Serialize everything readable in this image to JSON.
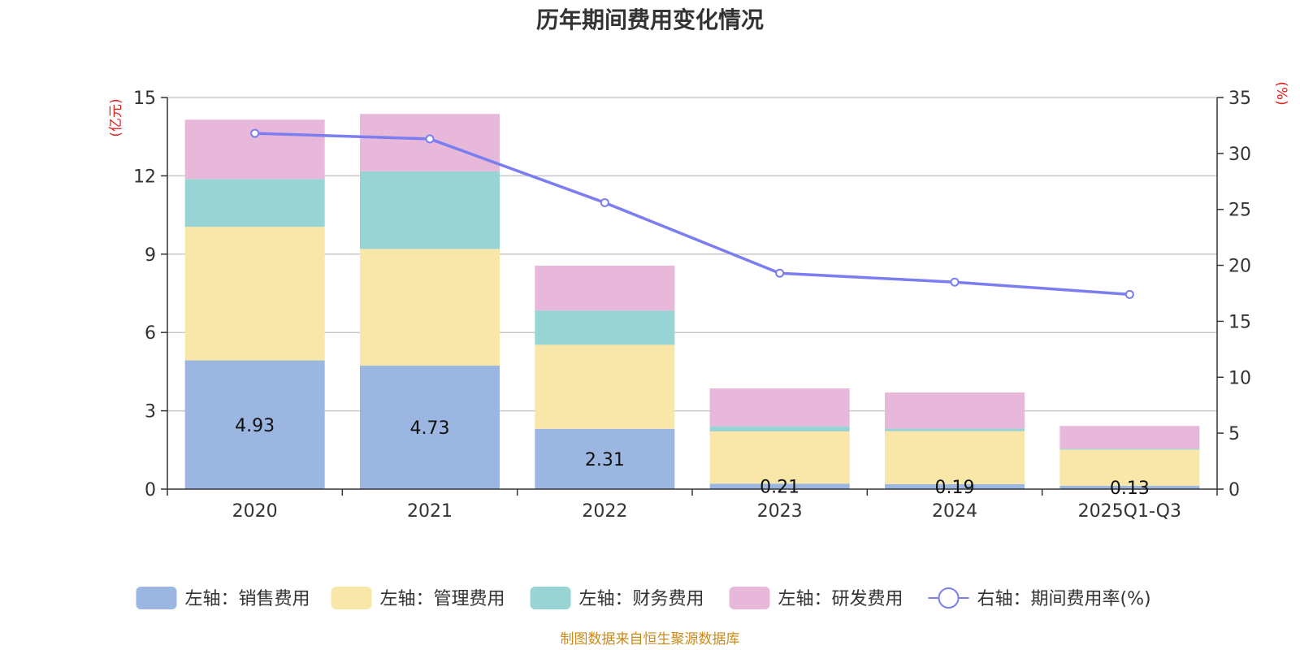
{
  "chart_data": {
    "type": "bar",
    "stacked": true,
    "title": "历年期间费用变化情况",
    "categories": [
      "2020",
      "2021",
      "2022",
      "2023",
      "2024",
      "2025Q1-Q3"
    ],
    "left_axis": {
      "unit_label": "(亿元)",
      "ylim": [
        0,
        15
      ],
      "ticks": [
        0,
        3,
        6,
        9,
        12,
        15
      ]
    },
    "right_axis": {
      "unit_label": "(%)",
      "ylim": [
        0,
        35
      ],
      "ticks": [
        0,
        5,
        10,
        15,
        20,
        25,
        30,
        35
      ]
    },
    "series": [
      {
        "name": "左轴：销售费用",
        "axis": "left",
        "kind": "bar",
        "color": "#9bb6e0",
        "values": [
          4.93,
          4.73,
          2.31,
          0.21,
          0.19,
          0.13
        ],
        "labels": [
          "4.93",
          "4.73",
          "2.31",
          "0.21",
          "0.19",
          "0.13"
        ]
      },
      {
        "name": "左轴：管理费用",
        "axis": "left",
        "kind": "bar",
        "color": "#f8e7a9",
        "values": [
          5.12,
          4.47,
          3.22,
          2.0,
          2.03,
          1.38
        ]
      },
      {
        "name": "左轴：财务费用",
        "axis": "left",
        "kind": "bar",
        "color": "#98d4d4",
        "values": [
          1.83,
          2.97,
          1.31,
          0.2,
          0.1,
          0.04
        ]
      },
      {
        "name": "左轴：研发费用",
        "axis": "left",
        "kind": "bar",
        "color": "#e7b8d9",
        "values": [
          2.27,
          2.2,
          1.72,
          1.45,
          1.38,
          0.87
        ]
      },
      {
        "name": "右轴：期间费用率(%)",
        "axis": "right",
        "kind": "line",
        "color": "#7b7ef0",
        "values": [
          31.8,
          31.3,
          25.6,
          19.3,
          18.5,
          17.4
        ]
      }
    ],
    "grid": true,
    "legend_position": "bottom"
  },
  "source_note": "制图数据来自恒生聚源数据库"
}
